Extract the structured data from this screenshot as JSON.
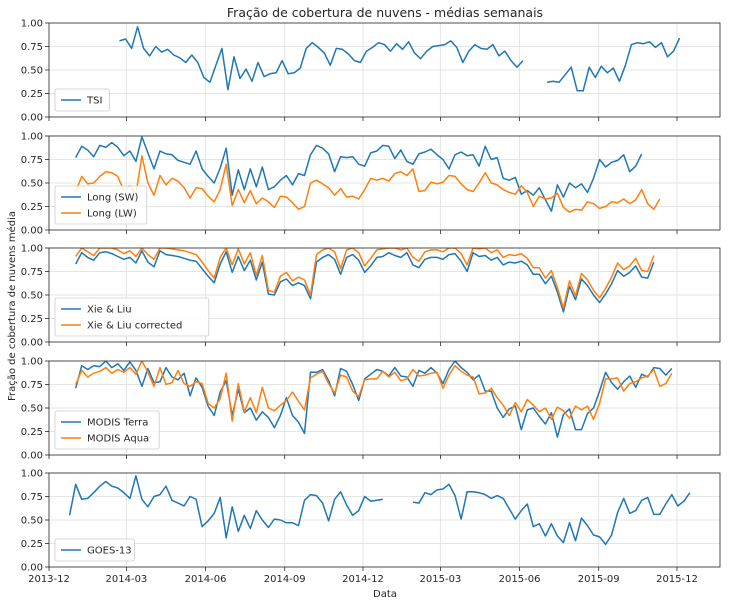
{
  "figure": {
    "title": "Fração de cobertura de nuvens - médias semanais",
    "xlabel": "Data",
    "ylabel": "Fração de cobertura de nuvens média",
    "colors": {
      "blue": "#1f77b4",
      "orange": "#ff7f0e",
      "grid": "#e5e5e5",
      "axis": "#262626"
    }
  },
  "chart_data": {
    "type": "line",
    "grid": true,
    "x_ticks": [
      "2013-12",
      "2014-03",
      "2014-06",
      "2014-09",
      "2014-12",
      "2015-03",
      "2015-06",
      "2015-09",
      "2015-12"
    ],
    "y_ticks": [
      "0.00",
      "0.25",
      "0.50",
      "0.75",
      "1.00"
    ],
    "xlim": [
      "2013-12-01",
      "2016-01-20"
    ],
    "ylim": [
      0,
      1
    ],
    "panels": [
      {
        "legend_position": "lower left",
        "series": [
          {
            "name": "TSI",
            "color": "#1f77b4",
            "start": "2014-02-21",
            "values": [
              0.81,
              0.83,
              0.73,
              0.96,
              0.73,
              0.65,
              0.75,
              0.69,
              0.72,
              0.66,
              0.63,
              0.58,
              0.66,
              0.58,
              0.42,
              0.37,
              0.55,
              0.73,
              0.29,
              0.64,
              0.41,
              0.51,
              0.38,
              0.58,
              0.43,
              0.46,
              0.47,
              0.6,
              0.46,
              0.47,
              0.52,
              0.73,
              0.79,
              0.74,
              0.68,
              0.55,
              0.73,
              0.72,
              0.67,
              0.6,
              0.58,
              0.7,
              0.74,
              0.79,
              0.77,
              0.7,
              0.78,
              0.72,
              0.8,
              0.68,
              0.62,
              0.7,
              0.75,
              0.76,
              0.77,
              0.81,
              0.74,
              0.58,
              0.7,
              0.77,
              0.73,
              0.72,
              0.77,
              0.65,
              0.7,
              0.6,
              0.53,
              0.6,
              null,
              null,
              null,
              0.37,
              0.38,
              0.37,
              0.45,
              0.53,
              0.28,
              0.28,
              0.53,
              0.42,
              0.54,
              0.47,
              0.52,
              0.38,
              0.55,
              0.77,
              0.79,
              0.78,
              0.8,
              0.74,
              0.79,
              0.64,
              0.7,
              0.84
            ]
          }
        ]
      },
      {
        "legend_position": "lower left",
        "series": [
          {
            "name": "Long (SW)",
            "color": "#1f77b4",
            "start": "2014-01-01",
            "values": [
              0.77,
              0.89,
              0.85,
              0.78,
              0.9,
              0.88,
              0.93,
              0.88,
              0.79,
              0.84,
              0.73,
              0.99,
              0.82,
              0.65,
              0.84,
              0.81,
              0.8,
              0.74,
              0.72,
              0.7,
              0.84,
              0.65,
              0.57,
              0.5,
              0.66,
              0.87,
              0.37,
              0.64,
              0.43,
              0.65,
              0.46,
              0.67,
              0.43,
              0.46,
              0.53,
              0.58,
              0.48,
              0.6,
              0.58,
              0.8,
              0.9,
              0.87,
              0.81,
              0.62,
              0.78,
              0.77,
              0.78,
              0.7,
              0.68,
              0.82,
              0.84,
              0.9,
              0.89,
              0.76,
              0.85,
              0.73,
              0.7,
              0.81,
              0.83,
              0.86,
              0.8,
              0.75,
              0.65,
              0.8,
              0.83,
              0.79,
              0.8,
              0.68,
              0.89,
              0.75,
              0.77,
              0.55,
              0.53,
              0.56,
              0.38,
              0.42,
              0.37,
              0.45,
              0.32,
              0.2,
              0.48,
              0.35,
              0.5,
              0.45,
              0.49,
              0.4,
              0.55,
              0.75,
              0.67,
              0.72,
              0.74,
              0.8,
              0.62,
              0.68,
              0.81
            ]
          },
          {
            "name": "Long (LW)",
            "color": "#ff7f0e",
            "start": "2014-01-01",
            "values": [
              0.41,
              0.57,
              0.49,
              0.5,
              0.57,
              0.62,
              0.61,
              0.57,
              0.42,
              0.47,
              0.38,
              0.79,
              0.5,
              0.37,
              0.58,
              0.48,
              0.55,
              0.52,
              0.45,
              0.34,
              0.45,
              0.44,
              0.36,
              0.3,
              0.43,
              0.7,
              0.26,
              0.43,
              0.29,
              0.42,
              0.28,
              0.34,
              0.3,
              0.24,
              0.36,
              0.35,
              0.29,
              0.22,
              0.25,
              0.5,
              0.53,
              0.49,
              0.45,
              0.37,
              0.44,
              0.35,
              0.36,
              0.33,
              0.43,
              0.55,
              0.53,
              0.55,
              0.52,
              0.6,
              0.62,
              0.58,
              0.65,
              0.41,
              0.42,
              0.51,
              0.49,
              0.51,
              0.58,
              0.57,
              0.49,
              0.43,
              0.41,
              0.5,
              0.61,
              0.5,
              0.48,
              0.43,
              0.4,
              0.38,
              0.47,
              0.4,
              0.25,
              0.36,
              0.33,
              0.34,
              0.39,
              0.24,
              0.19,
              0.22,
              0.21,
              0.3,
              0.28,
              0.23,
              0.25,
              0.3,
              0.29,
              0.33,
              0.28,
              0.32,
              0.43,
              0.28,
              0.22,
              0.33
            ]
          }
        ]
      },
      {
        "legend_position": "lower left",
        "series": [
          {
            "name": "Xie & Liu",
            "color": "#1f77b4",
            "start": "2014-01-01",
            "values": [
              0.83,
              0.95,
              0.9,
              0.87,
              0.95,
              0.96,
              0.94,
              0.91,
              0.88,
              0.9,
              0.84,
              0.97,
              0.85,
              0.8,
              0.97,
              0.93,
              0.92,
              0.91,
              0.89,
              0.87,
              0.86,
              0.78,
              0.7,
              0.63,
              0.83,
              0.96,
              0.74,
              0.91,
              0.76,
              0.87,
              0.66,
              0.85,
              0.51,
              0.5,
              0.64,
              0.67,
              0.6,
              0.63,
              0.6,
              0.46,
              0.85,
              0.9,
              0.93,
              0.88,
              0.72,
              0.9,
              0.93,
              0.87,
              0.74,
              0.81,
              0.9,
              0.91,
              0.95,
              0.92,
              0.9,
              0.95,
              0.82,
              0.79,
              0.88,
              0.9,
              0.9,
              0.88,
              0.93,
              0.94,
              0.86,
              0.75,
              0.95,
              0.91,
              0.92,
              0.87,
              0.9,
              0.82,
              0.85,
              0.84,
              0.86,
              0.82,
              0.72,
              0.72,
              0.62,
              0.7,
              0.53,
              0.32,
              0.59,
              0.45,
              0.67,
              0.6,
              0.5,
              0.42,
              0.51,
              0.62,
              0.76,
              0.7,
              0.74,
              0.81,
              0.69,
              0.68,
              0.85
            ]
          },
          {
            "name": "Xie & Liu corrected",
            "color": "#ff7f0e",
            "start": "2014-01-01",
            "values": [
              0.91,
              1.0,
              0.96,
              0.92,
              1.0,
              1.0,
              1.0,
              0.98,
              0.94,
              0.97,
              0.91,
              1.0,
              0.93,
              0.88,
              1.0,
              1.0,
              0.99,
              0.98,
              0.97,
              0.95,
              0.93,
              0.85,
              0.76,
              0.68,
              0.9,
              1.0,
              0.82,
              0.99,
              0.83,
              0.95,
              0.71,
              0.92,
              0.55,
              0.53,
              0.7,
              0.74,
              0.65,
              0.69,
              0.66,
              0.5,
              0.93,
              0.98,
              1.0,
              0.96,
              0.78,
              0.98,
              1.0,
              0.95,
              0.81,
              0.89,
              0.98,
              0.99,
              1.0,
              1.0,
              0.98,
              1.0,
              0.9,
              0.86,
              0.96,
              0.98,
              0.98,
              0.96,
              1.0,
              1.0,
              0.94,
              0.82,
              1.0,
              0.99,
              1.0,
              0.95,
              0.98,
              0.9,
              0.93,
              0.92,
              0.94,
              0.89,
              0.79,
              0.79,
              0.68,
              0.76,
              0.58,
              0.36,
              0.65,
              0.49,
              0.73,
              0.66,
              0.55,
              0.47,
              0.57,
              0.69,
              0.84,
              0.77,
              0.81,
              0.89,
              0.76,
              0.75,
              0.92
            ]
          }
        ]
      },
      {
        "legend_position": "lower left",
        "series": [
          {
            "name": "MODIS Terra",
            "color": "#1f77b4",
            "start": "2014-01-01",
            "values": [
              0.71,
              0.95,
              0.91,
              0.95,
              0.94,
              1.0,
              0.93,
              0.97,
              0.9,
              0.99,
              0.9,
              0.73,
              0.92,
              0.77,
              0.78,
              0.93,
              0.83,
              0.8,
              0.87,
              0.63,
              0.82,
              0.72,
              0.52,
              0.42,
              0.67,
              0.79,
              0.42,
              0.7,
              0.45,
              0.5,
              0.37,
              0.46,
              0.4,
              0.29,
              0.42,
              0.61,
              0.42,
              0.35,
              0.23,
              0.88,
              0.88,
              0.91,
              0.79,
              0.63,
              0.92,
              0.89,
              0.75,
              0.58,
              0.81,
              0.86,
              0.91,
              0.89,
              0.84,
              0.93,
              0.84,
              0.83,
              0.73,
              0.9,
              0.87,
              0.93,
              0.87,
              0.76,
              0.91,
              1.0,
              0.93,
              0.88,
              0.8,
              0.85,
              0.68,
              0.68,
              0.5,
              0.4,
              0.49,
              0.52,
              0.27,
              0.48,
              0.5,
              0.41,
              0.33,
              0.45,
              0.19,
              0.43,
              0.49,
              0.27,
              0.27,
              0.44,
              0.5,
              0.68,
              0.88,
              0.77,
              0.7,
              0.78,
              0.84,
              0.72,
              0.86,
              0.83,
              0.93,
              0.92,
              0.85,
              0.92
            ]
          },
          {
            "name": "MODIS Aqua",
            "color": "#ff7f0e",
            "start": "2014-01-01",
            "values": [
              0.75,
              0.9,
              0.83,
              0.87,
              0.89,
              0.93,
              0.87,
              0.91,
              0.88,
              0.93,
              0.86,
              1.0,
              0.88,
              0.73,
              0.93,
              0.75,
              0.77,
              0.9,
              0.76,
              0.73,
              0.78,
              0.76,
              0.55,
              0.5,
              0.6,
              0.87,
              0.36,
              0.76,
              0.46,
              0.61,
              0.45,
              0.72,
              0.5,
              0.47,
              0.53,
              0.58,
              0.67,
              0.57,
              0.48,
              0.82,
              0.86,
              0.89,
              0.76,
              0.66,
              0.85,
              0.83,
              0.68,
              0.62,
              0.8,
              0.81,
              0.81,
              0.89,
              0.83,
              0.88,
              0.79,
              0.81,
              0.91,
              0.84,
              0.85,
              0.87,
              0.88,
              0.71,
              0.85,
              0.95,
              0.89,
              0.85,
              0.83,
              0.65,
              0.66,
              0.71,
              0.61,
              0.53,
              0.42,
              0.56,
              0.46,
              0.59,
              0.53,
              0.46,
              0.5,
              0.38,
              0.51,
              0.47,
              0.39,
              0.52,
              0.48,
              0.52,
              0.38,
              0.55,
              0.81,
              0.81,
              0.82,
              0.68,
              0.76,
              0.78,
              0.82,
              0.84,
              0.91,
              0.73,
              0.76,
              0.87
            ]
          }
        ]
      },
      {
        "legend_position": "lower left",
        "series": [
          {
            "name": "GOES-13",
            "color": "#1f77b4",
            "start": "2013-12-25",
            "values": [
              0.55,
              0.88,
              0.72,
              0.73,
              0.79,
              0.86,
              0.91,
              0.86,
              0.84,
              0.79,
              0.73,
              0.97,
              0.72,
              0.64,
              0.75,
              0.77,
              0.86,
              0.71,
              0.68,
              0.65,
              0.75,
              0.72,
              0.43,
              0.49,
              0.57,
              0.74,
              0.31,
              0.64,
              0.38,
              0.55,
              0.41,
              0.6,
              0.5,
              0.42,
              0.51,
              0.5,
              0.47,
              0.47,
              0.44,
              0.71,
              0.77,
              0.76,
              0.68,
              0.49,
              0.72,
              0.8,
              0.66,
              0.55,
              0.6,
              0.75,
              0.7,
              0.71,
              0.72,
              null,
              null,
              null,
              null,
              0.69,
              0.68,
              0.79,
              0.77,
              0.82,
              0.83,
              0.88,
              0.76,
              0.51,
              0.8,
              0.8,
              0.79,
              0.77,
              0.73,
              0.76,
              0.73,
              0.62,
              0.51,
              0.6,
              0.67,
              0.43,
              0.46,
              0.33,
              0.46,
              0.33,
              0.26,
              0.47,
              0.28,
              0.52,
              0.44,
              0.34,
              0.32,
              0.24,
              0.34,
              0.58,
              0.73,
              0.57,
              0.6,
              0.71,
              0.74,
              0.56,
              0.56,
              0.67,
              0.77,
              0.65,
              0.7,
              0.79
            ]
          }
        ]
      }
    ]
  }
}
